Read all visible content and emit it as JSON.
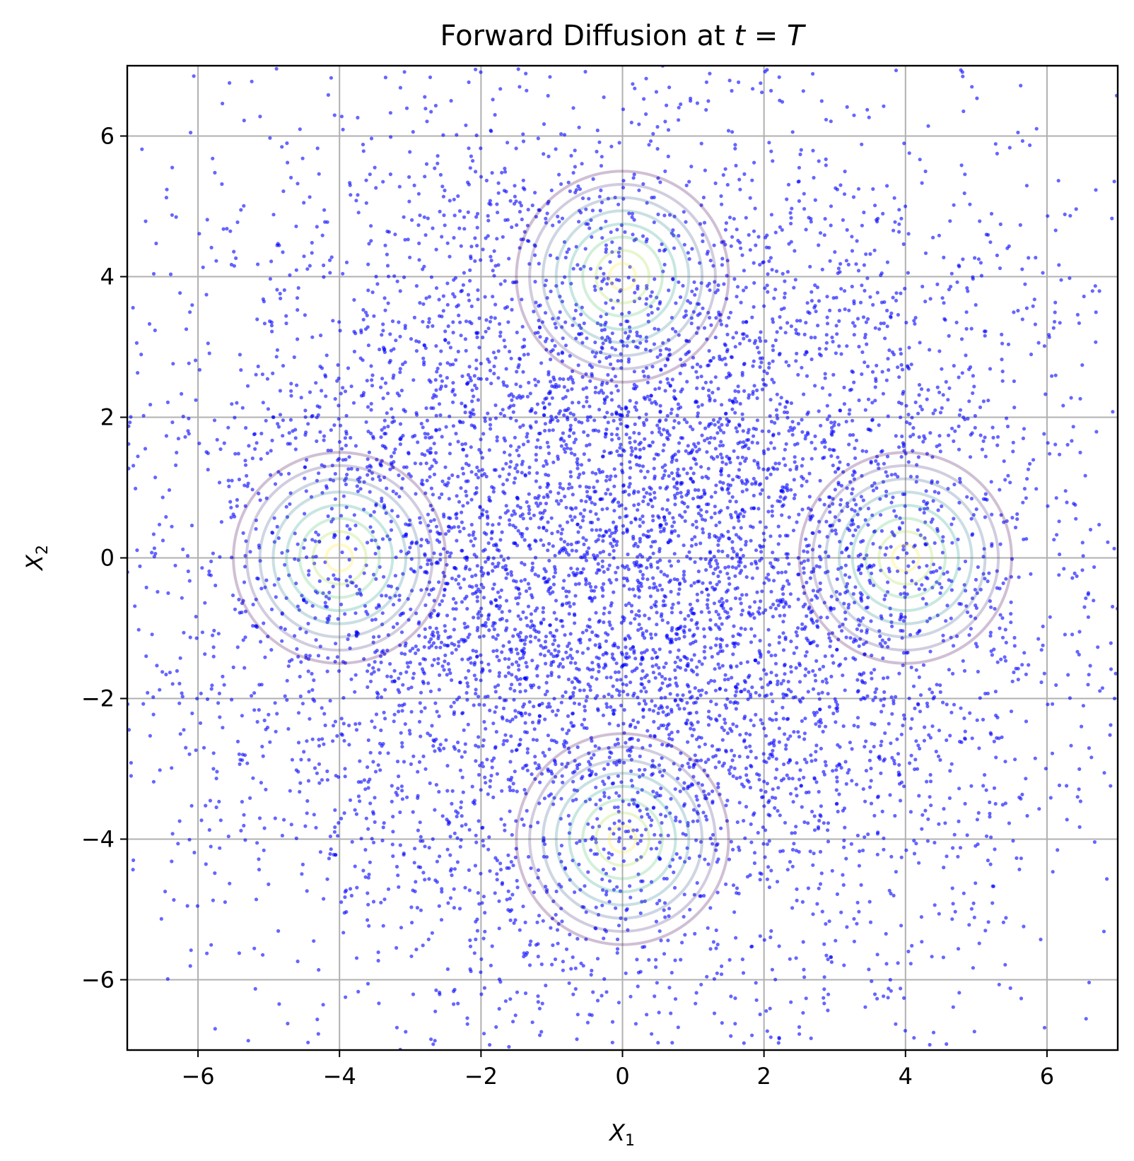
{
  "chart_data": {
    "type": "scatter",
    "title": "Forward Diffusion at ",
    "title_math": {
      "var": "t",
      "eq": " = ",
      "val": "T"
    },
    "xlabel": {
      "var": "X",
      "sub": "1"
    },
    "ylabel": {
      "var": "X",
      "sub": "2"
    },
    "xlim": [
      -7,
      7
    ],
    "ylim": [
      -7,
      7
    ],
    "xticks": [
      -6,
      -4,
      -2,
      0,
      2,
      4,
      6
    ],
    "yticks": [
      -6,
      -4,
      -2,
      0,
      2,
      4,
      6
    ],
    "xtick_labels": [
      "−6",
      "−4",
      "−2",
      "0",
      "2",
      "4",
      "6"
    ],
    "ytick_labels": [
      "−6",
      "−4",
      "−2",
      "0",
      "2",
      "4",
      "6"
    ],
    "grid": true,
    "legend": "none",
    "scatter": {
      "color": "#0000ff",
      "alpha": 0.6,
      "approx_count": 8000,
      "distribution": "gaussian",
      "mean": [
        0,
        0
      ],
      "std": 3.2
    },
    "contours": {
      "colormap": "viridis",
      "alpha": 0.25,
      "centers": [
        [
          0,
          4
        ],
        [
          -4,
          0
        ],
        [
          4,
          0
        ],
        [
          0,
          -4
        ]
      ],
      "levels": 8,
      "outer_radius": 1.5
    }
  }
}
